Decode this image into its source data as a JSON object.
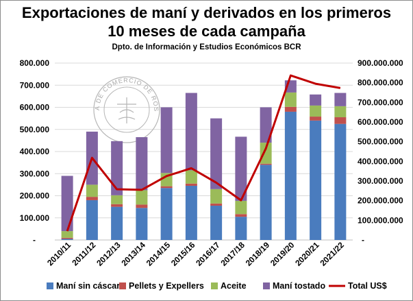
{
  "title": "Exportaciones de maní y derivados en los primeros",
  "title_line2": "10 meses de cada campaña",
  "subtitle": "Dpto. de Información y Estudios Económicos BCR",
  "watermark": "BOLSA DE COMERCIO DE ROSARIO",
  "colors": {
    "mani_sin_cascara": "#4a7cbe",
    "pellets": "#c0504d",
    "aceite": "#9bbb59",
    "mani_tostado": "#8064a2",
    "total": "#c00000"
  },
  "chart_data": {
    "type": "bar",
    "stacked": true,
    "categories": [
      "2010/11",
      "2011/12",
      "2012/13",
      "2013/14",
      "2014/15",
      "2015/16",
      "2016/17",
      "2017/18",
      "2018/19",
      "2019/20",
      "2020/21",
      "2021/22"
    ],
    "series": [
      {
        "name": "Maní sin cáscara",
        "values": [
          5000,
          180000,
          150000,
          145000,
          235000,
          245000,
          155000,
          105000,
          340000,
          580000,
          540000,
          525000
        ]
      },
      {
        "name": "Pellets y Expellers",
        "values": [
          5000,
          15000,
          12000,
          15000,
          8000,
          10000,
          10000,
          12000,
          5000,
          22000,
          18000,
          30000
        ]
      },
      {
        "name": "Aceite",
        "values": [
          30000,
          55000,
          40000,
          65000,
          60000,
          60000,
          65000,
          60000,
          95000,
          65000,
          50000,
          50000
        ]
      },
      {
        "name": "Maní tostado",
        "values": [
          250000,
          240000,
          245000,
          240000,
          297000,
          350000,
          320000,
          290000,
          160000,
          55000,
          50000,
          60000
        ]
      }
    ],
    "line_series": {
      "name": "Total US$",
      "axis": "right",
      "values": [
        45000000,
        418000000,
        258000000,
        255000000,
        325000000,
        365000000,
        292000000,
        202000000,
        465000000,
        837000000,
        795000000,
        773000000
      ]
    },
    "y_left_ticks": [
      "800.000",
      "700.000",
      "600.000",
      "500.000",
      "400.000",
      "300.000",
      "200.000",
      "100.000",
      "-"
    ],
    "y_right_ticks": [
      "900.000.000",
      "800.000.000",
      "700.000.000",
      "600.000.000",
      "500.000.000",
      "400.000.000",
      "300.000.000",
      "200.000.000",
      "100.000.000",
      "-"
    ],
    "ylim_left": [
      0,
      800000
    ],
    "ylim_right": [
      0,
      900000000
    ],
    "grid": true,
    "legend_position": "bottom"
  }
}
